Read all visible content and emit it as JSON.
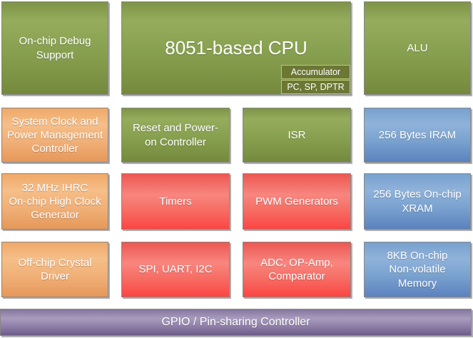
{
  "diagram": {
    "blocks": {
      "debug": {
        "label": "On-chip Debug\nSupport"
      },
      "cpu": {
        "label": "8051-based CPU"
      },
      "cpu_acc": {
        "label": "Accumulator"
      },
      "cpu_reg": {
        "label": "PC, SP, DPTR"
      },
      "alu": {
        "label": "ALU"
      },
      "sysclk": {
        "label": "System Clock and\nPower Management\nController"
      },
      "reset": {
        "label": "Reset and Power-\non Controller"
      },
      "isr": {
        "label": "ISR"
      },
      "iram": {
        "label": "256 Bytes IRAM"
      },
      "ihrc": {
        "label": "32 MHz IHRC\nOn-chip High Clock\nGenerator"
      },
      "timers": {
        "label": "Timers"
      },
      "pwm": {
        "label": "PWM Generators"
      },
      "xram": {
        "label": "256 Bytes On-chip\nXRAM"
      },
      "crystal": {
        "label": "Off-chip Crystal\nDriver"
      },
      "spi": {
        "label": "SPI, UART, I2C"
      },
      "adc": {
        "label": "ADC, OP-Amp,\nComparator"
      },
      "nvm": {
        "label": "8KB On-chip\nNon-volatile\nMemory"
      },
      "gpio": {
        "label": "GPIO / Pin-sharing Controller"
      }
    },
    "colors": {
      "green": "#87A04F",
      "orange": "#F0AC72",
      "red": "#F8736D",
      "blue": "#7BA3D0",
      "purple": "#8E80A8",
      "register_box_bg": "#6B7733",
      "register_box_border": "#B7CC78",
      "text": "#FFFFFF"
    }
  }
}
